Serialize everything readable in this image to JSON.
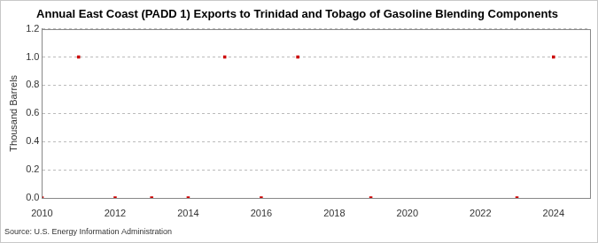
{
  "chart_data": {
    "type": "scatter",
    "title": "Annual East Coast (PADD 1) Exports to Trinidad and Tobago of Gasoline Blending Components",
    "subtitle": "Source: U.S. Energy Information Administration",
    "y_label": "Thousand Barrels",
    "x": [
      2010,
      2011,
      2012,
      2013,
      2014,
      2015,
      2016,
      2017,
      2019,
      2023,
      2024
    ],
    "values": [
      0,
      1,
      0,
      0,
      0,
      1,
      0,
      1,
      0,
      0,
      1
    ],
    "color": "#cc0000",
    "marker": "square",
    "xlim": [
      2010,
      2025
    ],
    "xticks": [
      2010,
      2012,
      2014,
      2016,
      2018,
      2020,
      2022,
      2024
    ],
    "ylim": [
      0,
      1.2
    ],
    "yticks": [
      {
        "value": 0,
        "label": "0.0"
      },
      {
        "value": 0.2,
        "label": "0.2"
      },
      {
        "value": 0.4,
        "label": "0.4"
      },
      {
        "value": 0.6,
        "label": "0.6"
      },
      {
        "value": 0.8,
        "label": "0.8"
      },
      {
        "value": 1.0,
        "label": "1.0"
      },
      {
        "value": 1.2,
        "label": "1.2"
      }
    ],
    "grid": true
  }
}
